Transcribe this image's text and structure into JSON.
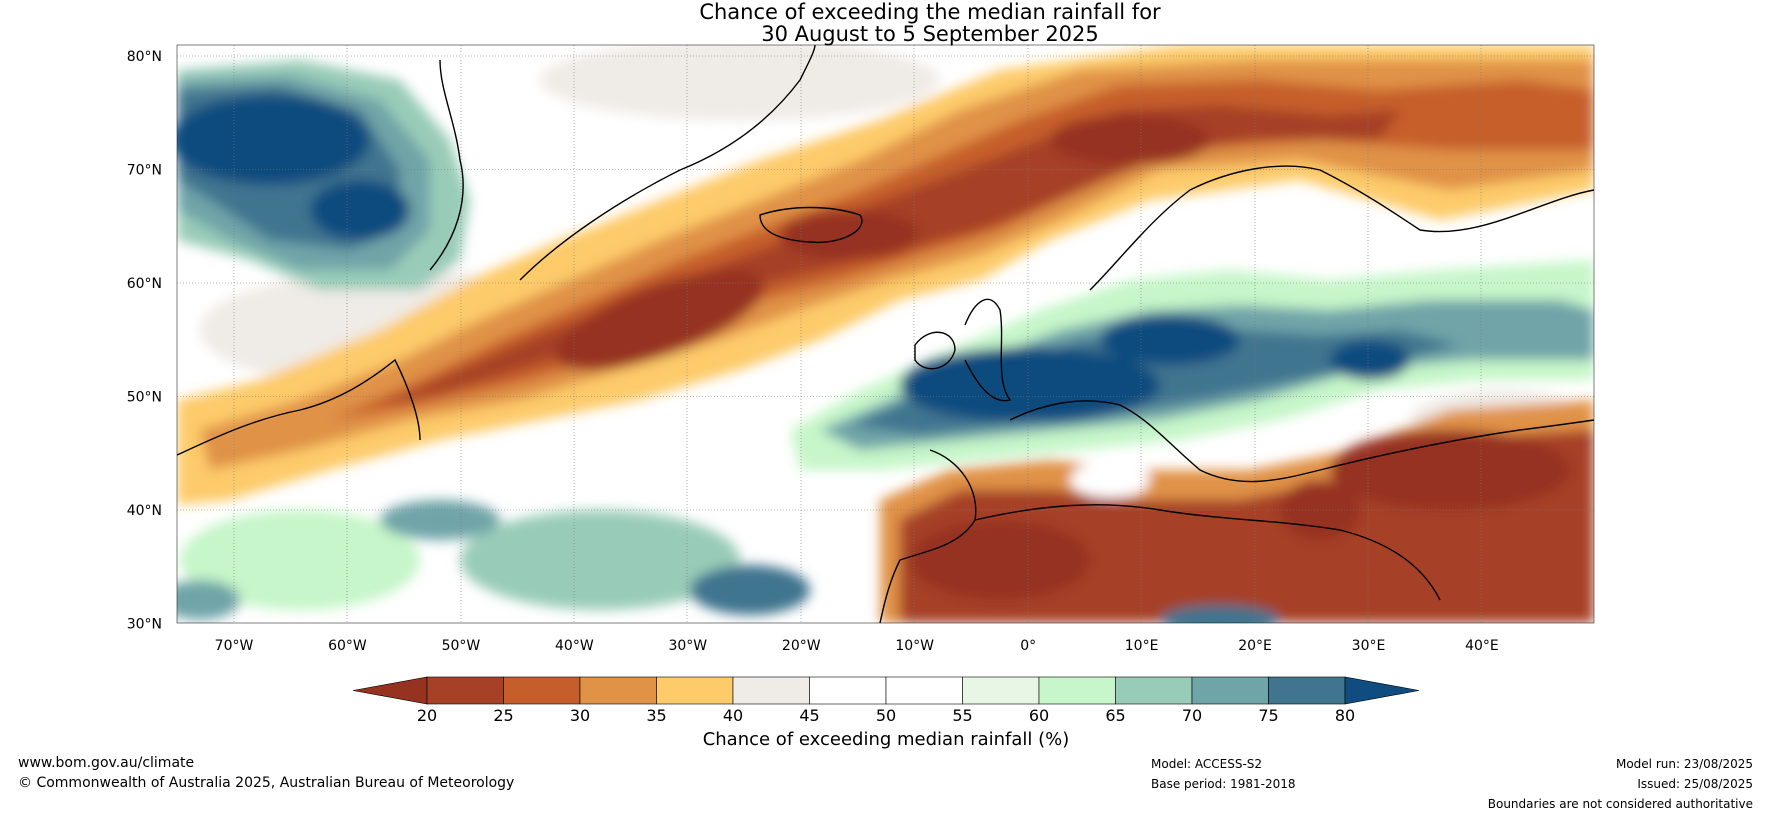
{
  "title": {
    "line1": "Chance of exceeding the median rainfall for",
    "line2": "30 August to 5 September 2025"
  },
  "axes": {
    "lat_labels": [
      "80°N",
      "70°N",
      "60°N",
      "50°N",
      "40°N",
      "30°N"
    ],
    "lon_labels": [
      "70°W",
      "60°W",
      "50°W",
      "40°W",
      "30°W",
      "20°W",
      "10°W",
      "0°",
      "10°E",
      "20°E",
      "30°E",
      "40°E"
    ],
    "lat_range": [
      30,
      80
    ],
    "lon_range": [
      -75,
      50
    ]
  },
  "colorbar": {
    "label": "Chance of exceeding median rainfall (%)",
    "ticks": [
      "20",
      "25",
      "30",
      "35",
      "40",
      "45",
      "50",
      "55",
      "60",
      "65",
      "70",
      "75",
      "80"
    ],
    "bin_colors": [
      "#a64127",
      "#c65e2b",
      "#e09246",
      "#fdcb6a",
      "#efebe6",
      "#ffffff",
      "#ffffff",
      "#e8f6e6",
      "#c6f6c9",
      "#99ccb8",
      "#6fa4a8",
      "#41758f"
    ],
    "low_extend_color": "#963320",
    "high_extend_color": "#0f4c7f"
  },
  "footer": {
    "website": "www.bom.gov.au/climate",
    "copyright": "© Commonwealth of Australia 2025, Australian Bureau of Meteorology",
    "model": "Model: ACCESS-S2",
    "base_period": "Base period: 1981-2018",
    "model_run": "Model run: 23/08/2025",
    "issued": "Issued: 25/08/2025",
    "disclaimer": "Boundaries are not considered authoritative"
  }
}
